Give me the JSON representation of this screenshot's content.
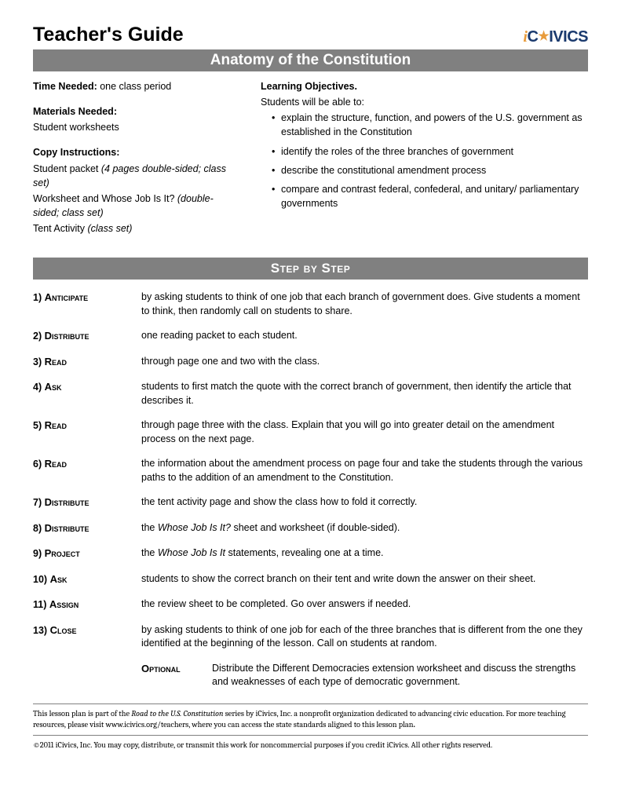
{
  "header": {
    "guideTitle": "Teacher's Guide",
    "logo": {
      "part1": "i",
      "part2": "C",
      "part3": "IVICS"
    }
  },
  "titleBar": "Anatomy of the Constitution",
  "left": {
    "timeNeeded": {
      "label": "Time Needed:",
      "value": " one class period"
    },
    "materials": {
      "label": "Materials Needed:",
      "value": "Student worksheets"
    },
    "copy": {
      "label": "Copy Instructions:",
      "line1a": "Student packet ",
      "line1b": "(4 pages double-sided; class set)",
      "line2a": "Worksheet and Whose Job Is It? ",
      "line2b": "(double-sided; class set)",
      "line3a": "Tent Activity ",
      "line3b": "(class set)"
    }
  },
  "right": {
    "objLabel": "Learning Objectives.",
    "objIntro": "Students will be able to:",
    "objectives": [
      "explain the structure, function, and powers of the U.S. government as established in the Constitution",
      "identify the roles of the three branches of government",
      "describe the constitutional amendment process",
      "compare and contrast federal, confederal, and unitary/ parliamentary governments"
    ]
  },
  "stepBar": "Step by Step",
  "steps": [
    {
      "num": "1)",
      "verb": "Anticipate",
      "text": "by asking students to think of one job that each branch of government does. Give students a moment to think, then randomly call on students to share."
    },
    {
      "num": "2)",
      "verb": "Distribute",
      "text": "one reading packet to each student."
    },
    {
      "num": "3)",
      "verb": "Read",
      "text": "through page one and two with the class."
    },
    {
      "num": "4)",
      "verb": "Ask",
      "text": "students to first match the quote with the correct branch of government, then identify the article that describes it."
    },
    {
      "num": "5)",
      "verb": "Read",
      "text": "through page three with the class. Explain that you will go into greater detail on the amendment process on the next page."
    },
    {
      "num": "6)",
      "verb": "Read",
      "text": "the information about the amendment process on page four and take the students through the various paths to the addition of an amendment to the Constitution."
    },
    {
      "num": "7)",
      "verb": "Distribute",
      "text": "the tent activity page and show the class how to fold it correctly."
    },
    {
      "num": "8)",
      "verb": "Distribute",
      "textPre": "the ",
      "textItalic": "Whose Job Is It?",
      "textPost": " sheet and worksheet (if double-sided)."
    },
    {
      "num": "9)",
      "verb": "Project",
      "textPre": "the ",
      "textItalic": "Whose Job Is It",
      "textPost": "  statements, revealing one at a time."
    },
    {
      "num": "10)",
      "verb": "Ask",
      "text": "students to show the correct branch on their tent and write down the answer on their sheet."
    },
    {
      "num": "11)",
      "verb": "Assign",
      "text": "the review sheet to be completed. Go over answers if needed."
    },
    {
      "num": "13)",
      "verb": "Close",
      "text": "by asking students to think of one job for each of the three branches that is different from the one they identified at the beginning of the lesson. Call on students at random."
    }
  ],
  "optional": {
    "label": "Optional",
    "text": "Distribute the Different Democracies extension worksheet and discuss the strengths and weaknesses of each type of democratic government."
  },
  "footer": {
    "p1a": "This lesson plan is part of the ",
    "p1b": "Road to the U.S. Constitution",
    "p1c": " series by iCivics, Inc. a nonprofit organization dedicated to advancing civic education. For more teaching resources, please visit www.icivics.org/teachers, where you can access the state standards aligned to this lesson plan",
    "p1d": ".",
    "p2": "©2011 iCivics, Inc. You may copy, distribute, or transmit this work for noncommercial purposes if you credit  iCivics. All other rights reserved."
  }
}
